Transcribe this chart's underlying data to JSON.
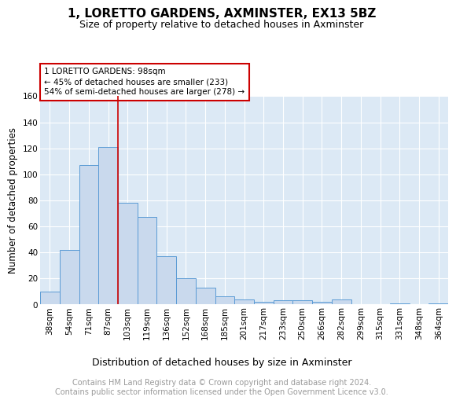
{
  "title": "1, LORETTO GARDENS, AXMINSTER, EX13 5BZ",
  "subtitle": "Size of property relative to detached houses in Axminster",
  "xlabel": "Distribution of detached houses by size in Axminster",
  "ylabel": "Number of detached properties",
  "bar_labels": [
    "38sqm",
    "54sqm",
    "71sqm",
    "87sqm",
    "103sqm",
    "119sqm",
    "136sqm",
    "152sqm",
    "168sqm",
    "185sqm",
    "201sqm",
    "217sqm",
    "233sqm",
    "250sqm",
    "266sqm",
    "282sqm",
    "299sqm",
    "315sqm",
    "331sqm",
    "348sqm",
    "364sqm"
  ],
  "bar_heights": [
    10,
    42,
    107,
    121,
    78,
    67,
    37,
    20,
    13,
    6,
    4,
    2,
    3,
    3,
    2,
    4,
    0,
    0,
    1,
    0,
    1
  ],
  "bar_color": "#c9d9ed",
  "bar_edge_color": "#5b9bd5",
  "background_color": "#dce9f5",
  "grid_color": "#ffffff",
  "red_line_index": 4,
  "red_line_color": "#cc0000",
  "annotation_line1": "1 LORETTO GARDENS: 98sqm",
  "annotation_line2": "← 45% of detached houses are smaller (233)",
  "annotation_line3": "54% of semi-detached houses are larger (278) →",
  "annotation_box_color": "#ffffff",
  "annotation_box_edge_color": "#cc0000",
  "ylim": [
    0,
    160
  ],
  "yticks": [
    0,
    20,
    40,
    60,
    80,
    100,
    120,
    140,
    160
  ],
  "footer_text": "Contains HM Land Registry data © Crown copyright and database right 2024.\nContains public sector information licensed under the Open Government Licence v3.0.",
  "title_fontsize": 11,
  "subtitle_fontsize": 9,
  "xlabel_fontsize": 9,
  "ylabel_fontsize": 8.5,
  "tick_fontsize": 7.5,
  "annotation_fontsize": 7.5,
  "footer_fontsize": 7
}
